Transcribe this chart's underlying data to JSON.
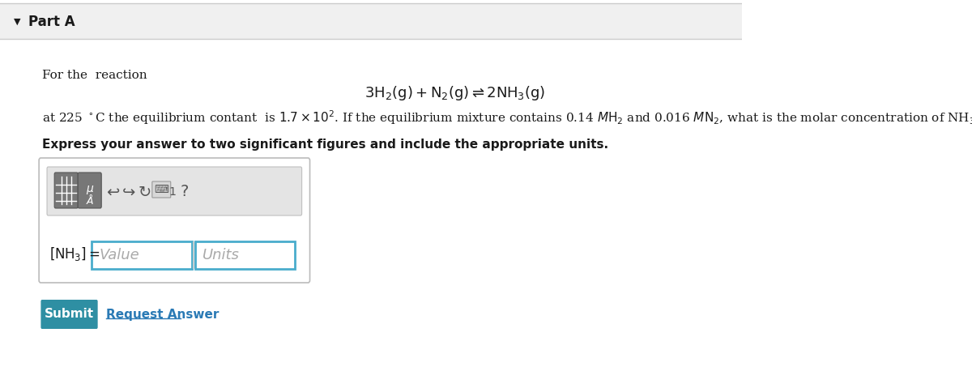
{
  "bg_color": "#f5f5f5",
  "white": "#ffffff",
  "dark_text": "#1a1a1a",
  "gray_text": "#888888",
  "blue_btn": "#2e8fa3",
  "blue_link": "#2a7ab5",
  "border_gray": "#cccccc",
  "input_border": "#4aaccc",
  "toolbar_bg": "#e0e0e0",
  "icon_bg": "#888888",
  "part_a_label": "Part A",
  "for_reaction": "For the  reaction",
  "bold_line": "Express your answer to two significant figures and include the appropriate units.",
  "value_placeholder": "Value",
  "units_placeholder": "Units",
  "submit_text": "Submit",
  "request_answer_text": "Request Answer",
  "header_bg": "#f0f0f0",
  "header_border": "#cccccc",
  "icon_dark": "#777777",
  "icon_border": "#555555"
}
